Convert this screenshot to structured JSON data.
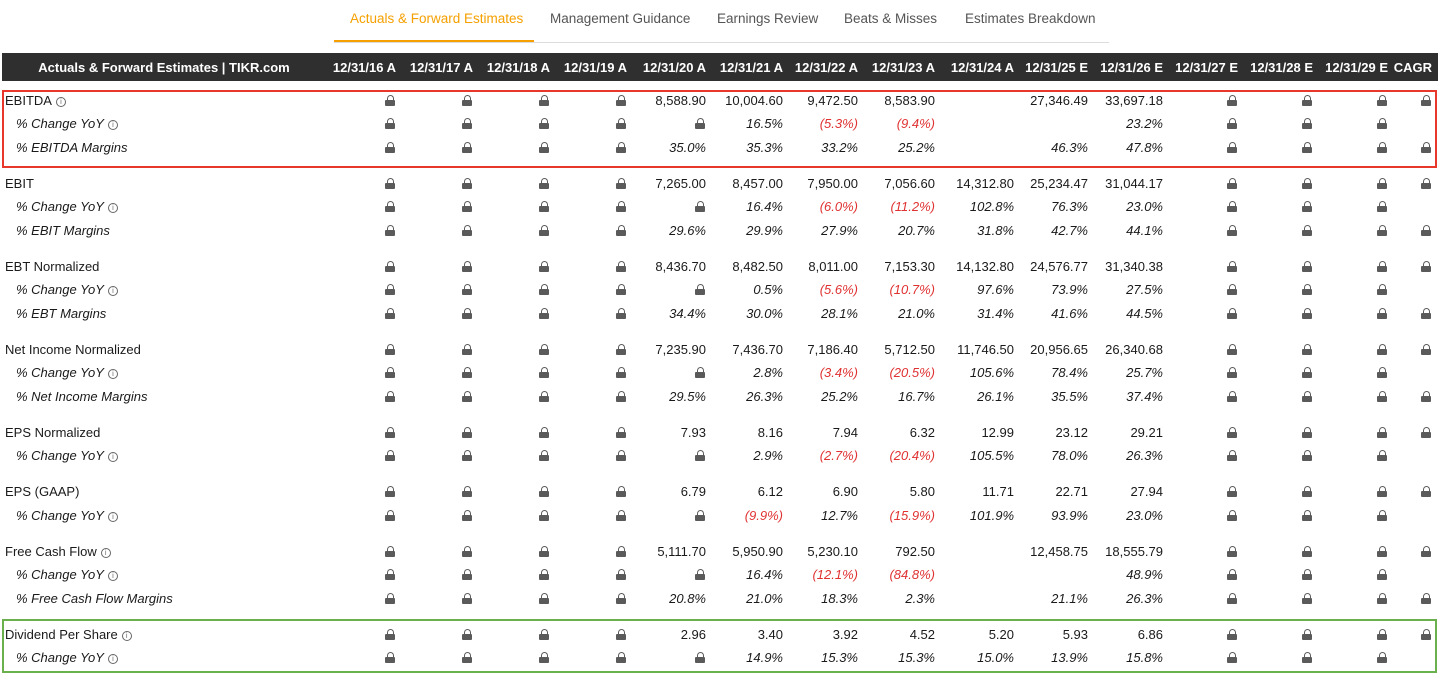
{
  "tabs": [
    {
      "label": "Actuals & Forward Estimates",
      "active": true
    },
    {
      "label": "Management Guidance",
      "active": false
    },
    {
      "label": "Earnings Review",
      "active": false
    },
    {
      "label": "Beats & Misses",
      "active": false
    },
    {
      "label": "Estimates Breakdown",
      "active": false
    }
  ],
  "table": {
    "title": "Actuals & Forward Estimates | TIKR.com",
    "columns": [
      "12/31/16 A",
      "12/31/17 A",
      "12/31/18 A",
      "12/31/19 A",
      "12/31/20 A",
      "12/31/21 A",
      "12/31/22 A",
      "12/31/23 A",
      "12/31/24 A",
      "12/31/25 E",
      "12/31/26 E",
      "12/31/27 E",
      "12/31/28 E",
      "12/31/29 E",
      "CAGR"
    ],
    "rows": [
      {
        "label": "EBITDA",
        "info": true,
        "sub": false,
        "cells": [
          "L",
          "L",
          "L",
          "L",
          "8,588.90",
          "10,004.60",
          "9,472.50",
          "8,583.90",
          "",
          "27,346.49",
          "33,697.18",
          "L",
          "L",
          "L",
          "L"
        ]
      },
      {
        "label": "% Change YoY",
        "info": true,
        "sub": true,
        "cells": [
          "L",
          "L",
          "L",
          "L",
          "L",
          "16.5%",
          "(5.3%)",
          "(9.4%)",
          "",
          "",
          "23.2%",
          "L",
          "L",
          "L",
          ""
        ]
      },
      {
        "label": "% EBITDA Margins",
        "info": false,
        "sub": true,
        "cells": [
          "L",
          "L",
          "L",
          "L",
          "35.0%",
          "35.3%",
          "33.2%",
          "25.2%",
          "",
          "46.3%",
          "47.8%",
          "L",
          "L",
          "L",
          "L"
        ]
      },
      {
        "label": "EBIT",
        "info": false,
        "sub": false,
        "cells": [
          "L",
          "L",
          "L",
          "L",
          "7,265.00",
          "8,457.00",
          "7,950.00",
          "7,056.60",
          "14,312.80",
          "25,234.47",
          "31,044.17",
          "L",
          "L",
          "L",
          "L"
        ]
      },
      {
        "label": "% Change YoY",
        "info": true,
        "sub": true,
        "cells": [
          "L",
          "L",
          "L",
          "L",
          "L",
          "16.4%",
          "(6.0%)",
          "(11.2%)",
          "102.8%",
          "76.3%",
          "23.0%",
          "L",
          "L",
          "L",
          ""
        ]
      },
      {
        "label": "% EBIT Margins",
        "info": false,
        "sub": true,
        "cells": [
          "L",
          "L",
          "L",
          "L",
          "29.6%",
          "29.9%",
          "27.9%",
          "20.7%",
          "31.8%",
          "42.7%",
          "44.1%",
          "L",
          "L",
          "L",
          "L"
        ]
      },
      {
        "label": "EBT Normalized",
        "info": false,
        "sub": false,
        "cells": [
          "L",
          "L",
          "L",
          "L",
          "8,436.70",
          "8,482.50",
          "8,011.00",
          "7,153.30",
          "14,132.80",
          "24,576.77",
          "31,340.38",
          "L",
          "L",
          "L",
          "L"
        ]
      },
      {
        "label": "% Change YoY",
        "info": true,
        "sub": true,
        "cells": [
          "L",
          "L",
          "L",
          "L",
          "L",
          "0.5%",
          "(5.6%)",
          "(10.7%)",
          "97.6%",
          "73.9%",
          "27.5%",
          "L",
          "L",
          "L",
          ""
        ]
      },
      {
        "label": "% EBT Margins",
        "info": false,
        "sub": true,
        "cells": [
          "L",
          "L",
          "L",
          "L",
          "34.4%",
          "30.0%",
          "28.1%",
          "21.0%",
          "31.4%",
          "41.6%",
          "44.5%",
          "L",
          "L",
          "L",
          "L"
        ]
      },
      {
        "label": "Net Income Normalized",
        "info": false,
        "sub": false,
        "cells": [
          "L",
          "L",
          "L",
          "L",
          "7,235.90",
          "7,436.70",
          "7,186.40",
          "5,712.50",
          "11,746.50",
          "20,956.65",
          "26,340.68",
          "L",
          "L",
          "L",
          "L"
        ]
      },
      {
        "label": "% Change YoY",
        "info": true,
        "sub": true,
        "cells": [
          "L",
          "L",
          "L",
          "L",
          "L",
          "2.8%",
          "(3.4%)",
          "(20.5%)",
          "105.6%",
          "78.4%",
          "25.7%",
          "L",
          "L",
          "L",
          ""
        ]
      },
      {
        "label": "% Net Income Margins",
        "info": false,
        "sub": true,
        "cells": [
          "L",
          "L",
          "L",
          "L",
          "29.5%",
          "26.3%",
          "25.2%",
          "16.7%",
          "26.1%",
          "35.5%",
          "37.4%",
          "L",
          "L",
          "L",
          "L"
        ]
      },
      {
        "label": "EPS Normalized",
        "info": false,
        "sub": false,
        "cells": [
          "L",
          "L",
          "L",
          "L",
          "7.93",
          "8.16",
          "7.94",
          "6.32",
          "12.99",
          "23.12",
          "29.21",
          "L",
          "L",
          "L",
          "L"
        ]
      },
      {
        "label": "% Change YoY",
        "info": true,
        "sub": true,
        "cells": [
          "L",
          "L",
          "L",
          "L",
          "L",
          "2.9%",
          "(2.7%)",
          "(20.4%)",
          "105.5%",
          "78.0%",
          "26.3%",
          "L",
          "L",
          "L",
          ""
        ]
      },
      {
        "label": "EPS (GAAP)",
        "info": false,
        "sub": false,
        "cells": [
          "L",
          "L",
          "L",
          "L",
          "6.79",
          "6.12",
          "6.90",
          "5.80",
          "11.71",
          "22.71",
          "27.94",
          "L",
          "L",
          "L",
          "L"
        ]
      },
      {
        "label": "% Change YoY",
        "info": true,
        "sub": true,
        "cells": [
          "L",
          "L",
          "L",
          "L",
          "L",
          "(9.9%)",
          "12.7%",
          "(15.9%)",
          "101.9%",
          "93.9%",
          "23.0%",
          "L",
          "L",
          "L",
          ""
        ]
      },
      {
        "label": "Free Cash Flow",
        "info": true,
        "sub": false,
        "cells": [
          "L",
          "L",
          "L",
          "L",
          "5,111.70",
          "5,950.90",
          "5,230.10",
          "792.50",
          "",
          "12,458.75",
          "18,555.79",
          "L",
          "L",
          "L",
          "L"
        ]
      },
      {
        "label": "% Change YoY",
        "info": true,
        "sub": true,
        "cells": [
          "L",
          "L",
          "L",
          "L",
          "L",
          "16.4%",
          "(12.1%)",
          "(84.8%)",
          "",
          "",
          "48.9%",
          "L",
          "L",
          "L",
          ""
        ]
      },
      {
        "label": "% Free Cash Flow Margins",
        "info": false,
        "sub": true,
        "cells": [
          "L",
          "L",
          "L",
          "L",
          "20.8%",
          "21.0%",
          "18.3%",
          "2.3%",
          "",
          "21.1%",
          "26.3%",
          "L",
          "L",
          "L",
          "L"
        ]
      },
      {
        "label": "Dividend Per Share",
        "info": true,
        "sub": false,
        "cells": [
          "L",
          "L",
          "L",
          "L",
          "2.96",
          "3.40",
          "3.92",
          "4.52",
          "5.20",
          "5.93",
          "6.86",
          "L",
          "L",
          "L",
          "L"
        ]
      },
      {
        "label": "% Change YoY",
        "info": true,
        "sub": true,
        "cells": [
          "L",
          "L",
          "L",
          "L",
          "L",
          "14.9%",
          "15.3%",
          "15.3%",
          "15.0%",
          "13.9%",
          "15.8%",
          "L",
          "L",
          "L",
          ""
        ]
      }
    ]
  },
  "colors": {
    "accent": "#f5a000",
    "header_bg": "#2f2f2f",
    "negative": "#e03232",
    "highlight_red": "#e8382b",
    "highlight_green": "#6ab04c"
  }
}
